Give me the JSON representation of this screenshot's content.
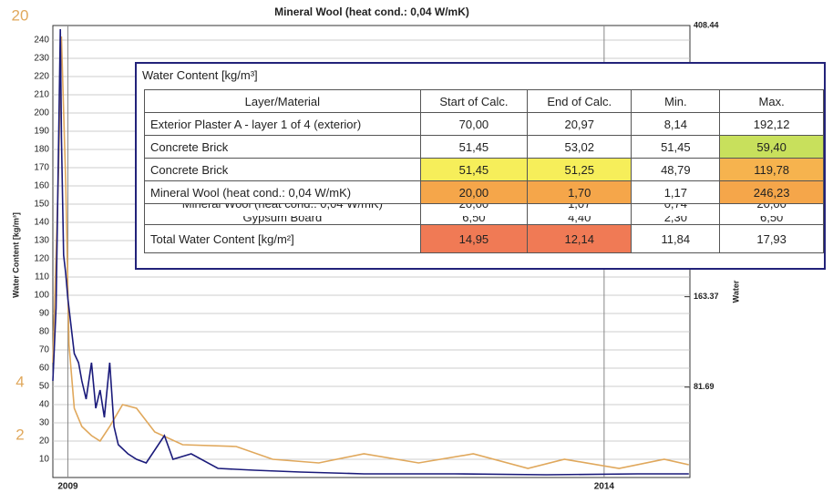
{
  "chart_data": {
    "type": "line",
    "title": "Mineral Wool (heat cond.: 0,04 W/mK)",
    "ylabel": "Water Content [kg/m³]",
    "y2label": "Water",
    "xlim": [
      2008.86,
      2014.8
    ],
    "xticks": [
      2009,
      2014
    ],
    "ylim": [
      0,
      248
    ],
    "yticks": [
      10,
      20,
      30,
      40,
      50,
      60,
      70,
      80,
      90,
      100,
      110,
      120,
      130,
      140,
      150,
      160,
      170,
      180,
      190,
      200,
      210,
      220,
      230,
      240
    ],
    "y2lim": [
      0,
      408.44
    ],
    "y2ticks": [
      408.44,
      163.37,
      81.69
    ],
    "y3ticks": [
      20,
      4,
      2
    ],
    "grid": true,
    "series": [
      {
        "color": "#1a1a7a",
        "x": [
          2008.86,
          2008.89,
          2008.93,
          2008.94,
          2008.96,
          2008.98,
          2009.0,
          2009.03,
          2009.06,
          2009.1,
          2009.13,
          2009.17,
          2009.22,
          2009.26,
          2009.3,
          2009.34,
          2009.39,
          2009.43,
          2009.47,
          2009.56,
          2009.64,
          2009.73,
          2009.9,
          2009.98,
          2010.15,
          2010.4,
          2010.74,
          2011.17,
          2011.76,
          2012.61,
          2013.46,
          2014.31,
          2014.79
        ],
        "values": [
          53,
          93,
          246,
          187,
          122,
          112,
          98,
          83,
          68,
          63,
          53,
          43,
          63,
          38,
          48,
          33,
          63,
          28,
          18,
          13,
          10,
          8,
          23,
          10,
          13,
          5,
          4,
          3,
          2,
          2,
          1.5,
          2,
          2
        ]
      },
      {
        "color": "#e0a85c",
        "x": [
          2008.86,
          2008.91,
          2008.94,
          2008.98,
          2009.01,
          2009.06,
          2009.13,
          2009.22,
          2009.3,
          2009.39,
          2009.51,
          2009.64,
          2009.81,
          2010.07,
          2010.57,
          2010.91,
          2011.34,
          2011.76,
          2012.27,
          2012.78,
          2013.29,
          2013.63,
          2014.14,
          2014.56,
          2014.79
        ],
        "values": [
          63,
          162,
          242,
          162,
          73,
          38,
          28,
          23,
          20,
          28,
          40,
          38,
          25,
          18,
          17,
          10,
          8,
          13,
          8,
          13,
          5,
          10,
          5,
          10,
          7
        ]
      }
    ]
  },
  "table": {
    "title": "Water Content [kg/m³]",
    "header": [
      "Layer/Material",
      "Start of Calc.",
      "End of Calc.",
      "Min.",
      "Max."
    ],
    "rows": [
      [
        "Exterior Plaster A  - layer 1 of 4 (exterior)",
        "70,00",
        "20,97",
        "8,14",
        "192,12"
      ],
      [
        "Concrete Brick",
        "51,45",
        "53,02",
        "51,45",
        "59,40"
      ],
      [
        "Concrete Brick",
        "51,45",
        "51,25",
        "48,79",
        "119,78"
      ],
      [
        "Mineral Wool (heat cond.: 0,04 W/mK)",
        "20,00",
        "1,70",
        "1,17",
        "246,23"
      ]
    ],
    "overlap_rows": [
      [
        "Mineral Wool (heat cond.: 0,04 W/mK)",
        "20,00",
        "1,07",
        "0,74",
        "20,00"
      ],
      [
        "Gypsum Board",
        "6,50",
        "4,40",
        "2,30",
        "6,50"
      ]
    ],
    "total": [
      "Total Water Content  [kg/m²]",
      "14,95",
      "12,14",
      "11,84",
      "17,93"
    ],
    "row_colors": [
      [
        null,
        null,
        null,
        null,
        null
      ],
      [
        null,
        null,
        null,
        null,
        "#c8e05c"
      ],
      [
        null,
        "#f6ee5a",
        "#f6ee5a",
        null,
        "#f6b34e"
      ],
      [
        null,
        "#f5a64a",
        "#f5a64a",
        null,
        "#f5a64a"
      ]
    ],
    "total_colors": [
      null,
      "#f07a55",
      "#f07a55",
      null,
      null
    ]
  }
}
